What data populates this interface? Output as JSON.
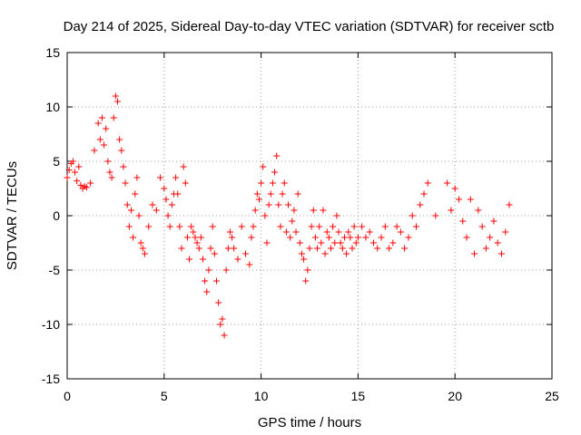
{
  "chart_data": {
    "type": "scatter",
    "title": "Day 214 of 2025, Sidereal Day-to-day VTEC variation (SDTVAR) for receiver sctb",
    "xlabel": "GPS time / hours",
    "ylabel": "SDTVAR / TECUs",
    "xlim": [
      0,
      25
    ],
    "ylim": [
      -15,
      15
    ],
    "xticks": [
      0,
      5,
      10,
      15,
      20,
      25
    ],
    "yticks": [
      -15,
      -10,
      -5,
      0,
      5,
      10,
      15
    ],
    "xtick_labels": [
      "0",
      "5",
      "10",
      "15",
      "20",
      "25"
    ],
    "ytick_labels": [
      "-15",
      "-10",
      "-5",
      "0",
      "5",
      "10",
      "15"
    ],
    "grid": true,
    "marker": "plus",
    "color": "#ff0000",
    "series": [
      {
        "name": "sctb",
        "x": [
          0.0,
          0.1,
          0.2,
          0.3,
          0.4,
          0.5,
          0.6,
          0.7,
          0.8,
          0.9,
          1.0,
          1.2,
          1.4,
          1.6,
          1.7,
          1.8,
          1.9,
          2.0,
          2.1,
          2.2,
          2.3,
          2.4,
          2.5,
          2.6,
          2.7,
          2.8,
          2.9,
          3.0,
          3.1,
          3.2,
          3.3,
          3.4,
          3.5,
          3.6,
          3.7,
          3.8,
          3.9,
          4.0,
          4.2,
          4.4,
          4.6,
          4.8,
          5.0,
          5.1,
          5.2,
          5.3,
          5.4,
          5.5,
          5.6,
          5.7,
          5.8,
          5.9,
          6.0,
          6.1,
          6.2,
          6.3,
          6.4,
          6.5,
          6.6,
          6.7,
          6.8,
          6.9,
          7.0,
          7.1,
          7.2,
          7.3,
          7.4,
          7.5,
          7.6,
          7.7,
          7.8,
          7.9,
          8.0,
          8.1,
          8.2,
          8.3,
          8.4,
          8.5,
          8.6,
          8.8,
          9.0,
          9.2,
          9.4,
          9.5,
          9.6,
          9.7,
          9.8,
          9.9,
          10.0,
          10.1,
          10.2,
          10.3,
          10.4,
          10.5,
          10.6,
          10.7,
          10.8,
          10.9,
          11.0,
          11.1,
          11.2,
          11.3,
          11.4,
          11.5,
          11.6,
          11.7,
          11.8,
          11.9,
          12.0,
          12.1,
          12.2,
          12.3,
          12.4,
          12.5,
          12.6,
          12.7,
          12.8,
          12.9,
          13.0,
          13.1,
          13.2,
          13.3,
          13.4,
          13.5,
          13.6,
          13.7,
          13.8,
          13.9,
          14.0,
          14.1,
          14.2,
          14.3,
          14.4,
          14.5,
          14.6,
          14.7,
          14.8,
          14.9,
          15.0,
          15.2,
          15.4,
          15.6,
          15.8,
          16.0,
          16.2,
          16.4,
          16.6,
          16.8,
          17.0,
          17.2,
          17.4,
          17.6,
          17.8,
          18.0,
          18.2,
          18.4,
          18.6,
          19.0,
          19.6,
          19.8,
          20.0,
          20.2,
          20.4,
          20.6,
          20.8,
          21.0,
          21.2,
          21.4,
          21.6,
          21.8,
          22.0,
          22.2,
          22.4,
          22.6,
          22.8
        ],
        "y": [
          3.5,
          4.2,
          4.8,
          5.0,
          4.0,
          3.2,
          4.5,
          2.8,
          2.5,
          2.7,
          2.6,
          3.0,
          6.0,
          8.5,
          7.0,
          9.0,
          6.5,
          8.0,
          5.0,
          4.0,
          3.5,
          9.0,
          11.0,
          10.5,
          7.0,
          6.0,
          4.5,
          3.0,
          1.0,
          -1.0,
          0.5,
          -2.0,
          2.0,
          3.5,
          0.0,
          -2.5,
          -3.0,
          -3.5,
          -1.0,
          1.0,
          0.5,
          3.5,
          2.5,
          1.5,
          0.0,
          -1.0,
          1.0,
          2.0,
          3.5,
          2.0,
          -1.0,
          -3.0,
          4.5,
          3.0,
          -2.0,
          -4.0,
          -1.0,
          -1.5,
          -2.0,
          -2.5,
          -3.0,
          -2.0,
          -4.0,
          -6.0,
          -7.0,
          -5.0,
          -3.0,
          -1.0,
          -3.5,
          -6.0,
          -8.0,
          -10.0,
          -9.5,
          -11.0,
          -5.0,
          -3.0,
          -1.5,
          -2.0,
          -3.0,
          -4.0,
          -1.0,
          -3.5,
          -4.5,
          -2.0,
          -1.0,
          0.5,
          2.0,
          1.5,
          3.0,
          4.5,
          0.0,
          -2.5,
          1.0,
          2.0,
          3.0,
          4.0,
          5.5,
          1.0,
          -1.0,
          2.0,
          3.0,
          -1.5,
          1.0,
          -2.0,
          -0.5,
          0.5,
          -1.5,
          2.0,
          -2.5,
          -3.5,
          -4.0,
          -6.0,
          -5.0,
          -3.0,
          -1.0,
          0.5,
          -2.0,
          -3.0,
          -1.0,
          -2.5,
          0.5,
          -3.5,
          -1.5,
          -2.0,
          -3.0,
          -1.0,
          -2.5,
          0.0,
          -1.5,
          -2.5,
          -3.0,
          -2.0,
          -3.5,
          -1.5,
          -2.0,
          -3.0,
          -1.0,
          -2.5,
          -2.0,
          -1.0,
          -2.0,
          -1.5,
          -2.5,
          -3.0,
          -2.0,
          -1.0,
          -3.0,
          -2.5,
          -1.0,
          -1.5,
          -3.0,
          -2.0,
          0.0,
          -1.0,
          1.0,
          2.0,
          3.0,
          0.0,
          3.0,
          0.5,
          2.5,
          1.5,
          -0.5,
          -2.0,
          1.5,
          -3.5,
          0.5,
          -1.0,
          -3.0,
          -2.0,
          -0.5,
          -2.5,
          -3.5,
          -1.5,
          1.0
        ]
      }
    ]
  }
}
